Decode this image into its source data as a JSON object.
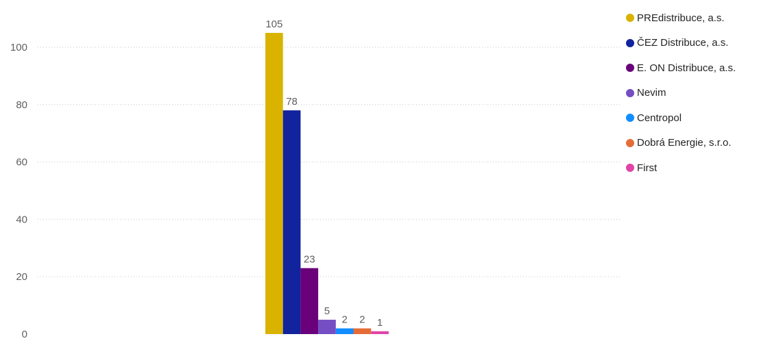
{
  "chart_data": {
    "type": "bar",
    "categories": [
      ""
    ],
    "series": [
      {
        "name": "PREdistribuce, a.s.",
        "values": [
          105
        ],
        "color": "#D9B300"
      },
      {
        "name": "ČEZ Distribuce, a.s.",
        "values": [
          78
        ],
        "color": "#12239E"
      },
      {
        "name": "E. ON Distribuce, a.s.",
        "values": [
          23
        ],
        "color": "#6B007B"
      },
      {
        "name": "Nevim",
        "values": [
          5
        ],
        "color": "#744EC2"
      },
      {
        "name": "Centropol",
        "values": [
          2
        ],
        "color": "#118DFF"
      },
      {
        "name": "Dobrá Energie, s.r.o.",
        "values": [
          2
        ],
        "color": "#E66C37"
      },
      {
        "name": "First",
        "values": [
          1
        ],
        "color": "#E044A7"
      }
    ],
    "title": "",
    "xlabel": "",
    "ylabel": "",
    "ylim": [
      0,
      110
    ],
    "yticks": [
      "0",
      "20",
      "40",
      "60",
      "80",
      "100"
    ],
    "data_labels": [
      "105",
      "78",
      "23",
      "5",
      "2",
      "2",
      "1"
    ],
    "grid": true,
    "legend_position": "right"
  }
}
